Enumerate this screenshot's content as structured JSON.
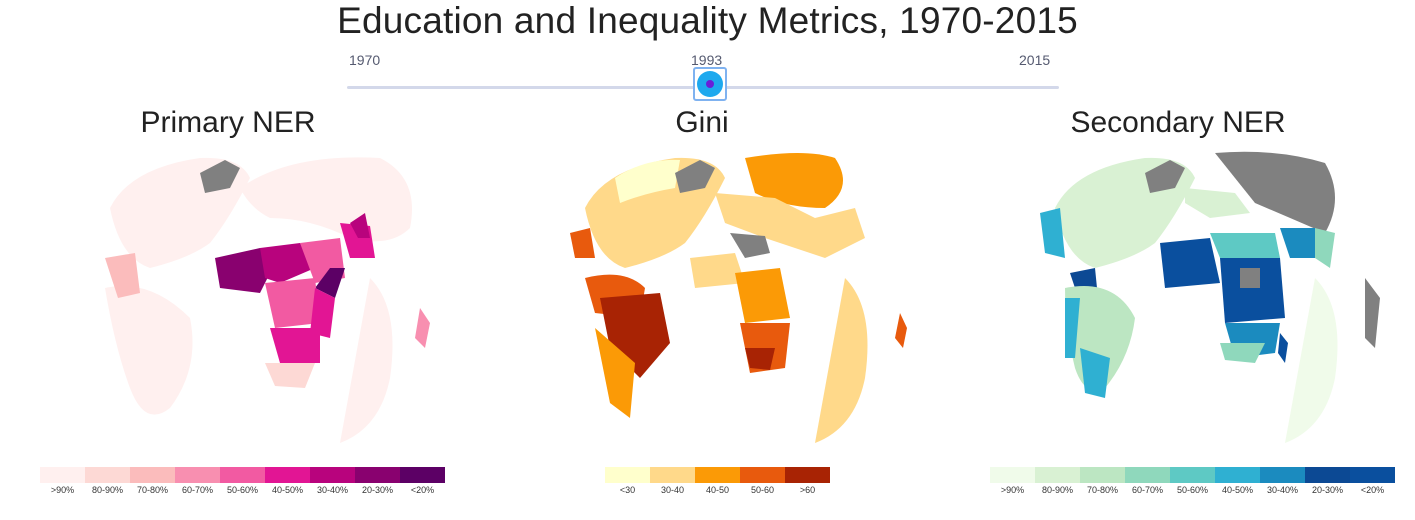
{
  "title": "Education and Inequality Metrics, 1970-2015",
  "slider": {
    "min_label": "1970",
    "current_label": "1993",
    "max_label": "2015",
    "value": 1993,
    "min": 1970,
    "max": 2015
  },
  "maps": [
    {
      "title": "Primary NER",
      "legend": [
        {
          "label": ">90%",
          "color": "#fff0ef"
        },
        {
          "label": "80-90%",
          "color": "#fdd9d5"
        },
        {
          "label": "70-80%",
          "color": "#fbbcbc"
        },
        {
          "label": "60-70%",
          "color": "#f88fb0"
        },
        {
          "label": "50-60%",
          "color": "#f25aa2"
        },
        {
          "label": "40-50%",
          "color": "#e21594"
        },
        {
          "label": "30-40%",
          "color": "#b8037d"
        },
        {
          "label": "20-30%",
          "color": "#89016f"
        },
        {
          "label": "<20%",
          "color": "#5c0065"
        }
      ]
    },
    {
      "title": "Gini",
      "legend": [
        {
          "label": "<30",
          "color": "#ffffcc"
        },
        {
          "label": "30-40",
          "color": "#ffd98a"
        },
        {
          "label": "40-50",
          "color": "#fb9a06"
        },
        {
          "label": "50-60",
          "color": "#e85a0d"
        },
        {
          "label": ">60",
          "color": "#a82304"
        }
      ]
    },
    {
      "title": "Secondary NER",
      "legend": [
        {
          "label": ">90%",
          "color": "#f0fbea"
        },
        {
          "label": "80-90%",
          "color": "#d9f1d3"
        },
        {
          "label": "70-80%",
          "color": "#bce6c2"
        },
        {
          "label": "60-70%",
          "color": "#8fd8bc"
        },
        {
          "label": "50-60%",
          "color": "#5ec9c4"
        },
        {
          "label": "40-50%",
          "color": "#2fb0d2"
        },
        {
          "label": "30-40%",
          "color": "#1b8bbf"
        },
        {
          "label": "20-30%",
          "color": "#0c4994"
        },
        {
          "label": "<20%",
          "color": "#0a4f9e"
        }
      ]
    }
  ],
  "no_data_color": "#808080"
}
